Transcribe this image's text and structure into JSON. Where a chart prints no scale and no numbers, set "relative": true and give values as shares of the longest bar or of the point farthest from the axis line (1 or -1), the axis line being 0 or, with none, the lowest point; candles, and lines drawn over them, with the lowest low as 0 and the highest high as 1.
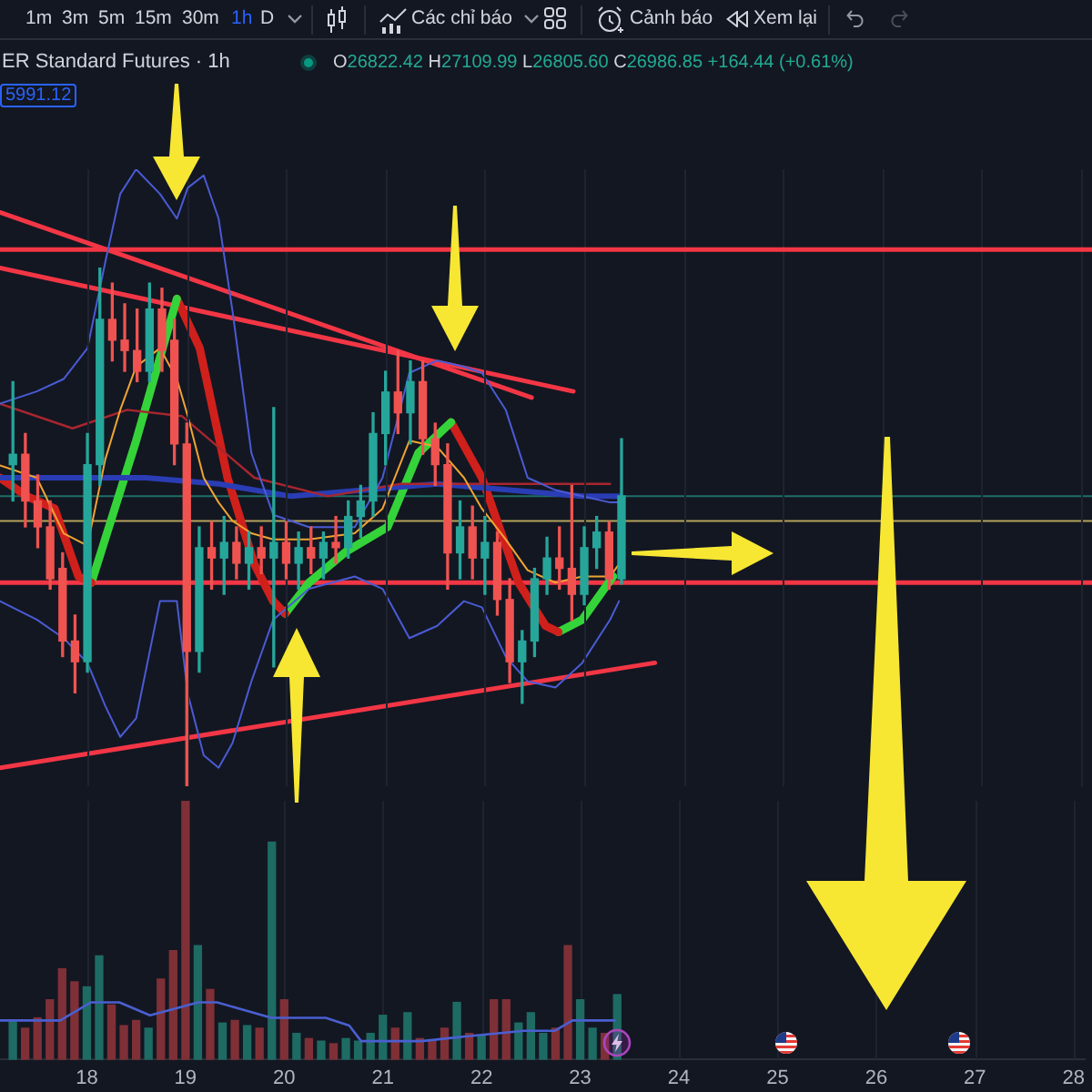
{
  "chart_data": [
    {
      "type": "candlestick",
      "title": "ER Standard Futures · 1h",
      "subtitle": "O26822.42 H27109.99 L26805.60 C26986.85 +164.44 (+0.61%)",
      "annotations": [
        "1m",
        "3m",
        "5m",
        "15m",
        "30m",
        "1h",
        "D",
        "Các chỉ báo",
        "Cảnh báo",
        "Xem lại",
        "5991.12"
      ],
      "relative": true,
      "x": [
        17.25,
        17.375,
        17.5,
        17.625,
        17.75,
        17.875,
        18,
        18.125,
        18.25,
        18.375,
        18.5,
        18.625,
        18.75,
        18.875,
        19,
        19.125,
        19.25,
        19.375,
        19.5,
        19.625,
        19.75,
        19.875,
        20,
        20.125,
        20.25,
        20.375,
        20.5,
        20.625,
        20.75,
        20.875,
        21,
        21.125,
        21.25,
        21.375,
        21.5,
        21.625,
        21.75,
        21.875,
        22,
        22.125,
        22.25,
        22.375,
        22.5,
        22.625,
        22.75,
        22.875,
        23,
        23.125,
        23.25,
        23.375
      ],
      "ohlc": [
        [
          0.62,
          0.78,
          0.55,
          0.64
        ],
        [
          0.64,
          0.68,
          0.5,
          0.55
        ],
        [
          0.55,
          0.6,
          0.46,
          0.5
        ],
        [
          0.5,
          0.55,
          0.38,
          0.4
        ],
        [
          0.42,
          0.45,
          0.25,
          0.28
        ],
        [
          0.28,
          0.33,
          0.18,
          0.24
        ],
        [
          0.24,
          0.68,
          0.22,
          0.62
        ],
        [
          0.62,
          1,
          0.58,
          0.9
        ],
        [
          0.9,
          0.97,
          0.82,
          0.86
        ],
        [
          0.86,
          0.93,
          0.8,
          0.84
        ],
        [
          0.84,
          0.92,
          0.78,
          0.8
        ],
        [
          0.8,
          0.97,
          0.78,
          0.92
        ],
        [
          0.92,
          0.96,
          0.8,
          0.84
        ],
        [
          0.86,
          0.9,
          0.62,
          0.66
        ],
        [
          0.66,
          0.7,
          0,
          0.26
        ],
        [
          0.26,
          0.5,
          0.22,
          0.46
        ],
        [
          0.46,
          0.51,
          0.38,
          0.44
        ],
        [
          0.44,
          0.52,
          0.37,
          0.47
        ],
        [
          0.47,
          0.5,
          0.4,
          0.43
        ],
        [
          0.43,
          0.49,
          0.38,
          0.46
        ],
        [
          0.46,
          0.5,
          0.41,
          0.44
        ],
        [
          0.44,
          0.73,
          0.23,
          0.47
        ],
        [
          0.47,
          0.51,
          0.4,
          0.43
        ],
        [
          0.43,
          0.49,
          0.38,
          0.46
        ],
        [
          0.46,
          0.5,
          0.41,
          0.44
        ],
        [
          0.44,
          0.49,
          0.4,
          0.47
        ],
        [
          0.47,
          0.52,
          0.43,
          0.46
        ],
        [
          0.46,
          0.55,
          0.44,
          0.52
        ],
        [
          0.52,
          0.58,
          0.48,
          0.55
        ],
        [
          0.55,
          0.72,
          0.52,
          0.68
        ],
        [
          0.68,
          0.8,
          0.62,
          0.76
        ],
        [
          0.76,
          0.84,
          0.68,
          0.72
        ],
        [
          0.72,
          0.82,
          0.66,
          0.78
        ],
        [
          0.78,
          0.82,
          0.64,
          0.67
        ],
        [
          0.67,
          0.7,
          0.58,
          0.62
        ],
        [
          0.62,
          0.66,
          0.38,
          0.45
        ],
        [
          0.45,
          0.55,
          0.4,
          0.5
        ],
        [
          0.5,
          0.54,
          0.4,
          0.44
        ],
        [
          0.44,
          0.52,
          0.37,
          0.47
        ],
        [
          0.47,
          0.49,
          0.33,
          0.36
        ],
        [
          0.36,
          0.4,
          0.2,
          0.24
        ],
        [
          0.24,
          0.3,
          0.16,
          0.28
        ],
        [
          0.28,
          0.42,
          0.25,
          0.4
        ],
        [
          0.4,
          0.48,
          0.37,
          0.44
        ],
        [
          0.44,
          0.5,
          0.38,
          0.42
        ],
        [
          0.42,
          0.58,
          0.32,
          0.37
        ],
        [
          0.37,
          0.5,
          0.35,
          0.46
        ],
        [
          0.46,
          0.52,
          0.42,
          0.49
        ],
        [
          0.49,
          0.51,
          0.38,
          0.4
        ],
        [
          0.4,
          0.67,
          0.39,
          0.56
        ]
      ],
      "colors": [
        "#26a69a",
        "#ef5350",
        "#ef5350",
        "#ef5350",
        "#ef5350",
        "#ef5350",
        "#26a69a",
        "#26a69a",
        "#ef5350",
        "#ef5350",
        "#ef5350",
        "#26a69a",
        "#ef5350",
        "#ef5350",
        "#ef5350",
        "#26a69a",
        "#ef5350",
        "#26a69a",
        "#ef5350",
        "#26a69a",
        "#ef5350",
        "#26a69a",
        "#ef5350",
        "#26a69a",
        "#ef5350",
        "#26a69a",
        "#ef5350",
        "#26a69a",
        "#26a69a",
        "#26a69a",
        "#26a69a",
        "#ef5350",
        "#26a69a",
        "#ef5350",
        "#ef5350",
        "#ef5350",
        "#26a69a",
        "#ef5350",
        "#26a69a",
        "#ef5350",
        "#ef5350",
        "#26a69a",
        "#26a69a",
        "#26a69a",
        "#ef5350",
        "#ef5350",
        "#26a69a",
        "#26a69a",
        "#ef5350",
        "#26a69a"
      ],
      "xlim": [
        17.12,
        28.11
      ],
      "xticks": [
        18,
        19,
        20,
        21,
        22,
        23,
        24,
        25,
        26,
        27,
        28
      ],
      "tick_labels": false,
      "grid": "x"
    },
    {
      "type": "line",
      "relative": true,
      "series": [
        {
          "type": "line",
          "color": "#4a5bd4",
          "x": [
            17.12,
            17.49,
            17.76,
            18.0,
            18.18,
            18.33,
            18.49,
            18.73,
            18.9,
            19.01,
            19.17,
            19.32,
            19.46,
            19.65,
            19.87,
            20.23,
            20.69,
            20.97,
            21.24,
            21.52,
            21.79,
            21.97,
            22.21,
            22.43,
            22.71,
            22.98,
            23.26,
            23.35
          ],
          "values": [
            0.62,
            0.64,
            0.66,
            0.71,
            0.85,
            0.96,
            1.0,
            0.96,
            0.92,
            0.97,
            0.99,
            0.92,
            0.77,
            0.54,
            0.44,
            0.42,
            0.42,
            0.5,
            0.67,
            0.69,
            0.68,
            0.67,
            0.61,
            0.5,
            0.48,
            0.47,
            0.46,
            0.46
          ]
        },
        {
          "type": "line",
          "color": "#4a5bd4",
          "x": [
            17.12,
            17.49,
            17.76,
            18.0,
            18.18,
            18.33,
            18.49,
            18.73,
            18.9,
            19.01,
            19.17,
            19.32,
            19.46,
            19.65,
            19.87,
            20.23,
            20.69,
            20.97,
            21.24,
            21.52,
            21.79,
            21.97,
            22.21,
            22.43,
            22.71,
            22.98,
            23.26,
            23.35
          ],
          "values": [
            0.3,
            0.27,
            0.24,
            0.2,
            0.13,
            0.08,
            0.11,
            0.3,
            0.3,
            0.15,
            0.05,
            0.03,
            0.07,
            0.17,
            0.27,
            0.32,
            0.34,
            0.32,
            0.24,
            0.26,
            0.3,
            0.29,
            0.21,
            0.17,
            0.16,
            0.2,
            0.27,
            0.3
          ]
        },
        {
          "type": "line",
          "color": "#f0a432",
          "x": [
            17.12,
            17.49,
            17.76,
            18.0,
            18.18,
            18.33,
            18.49,
            18.73,
            18.9,
            19.01,
            19.17,
            19.32,
            19.46,
            19.65,
            19.87,
            20.23,
            20.69,
            20.97,
            21.24,
            21.52,
            21.79,
            21.97,
            22.21,
            22.43,
            22.71,
            22.98,
            23.26,
            23.35
          ],
          "values": [
            0.52,
            0.5,
            0.41,
            0.39,
            0.53,
            0.61,
            0.68,
            0.71,
            0.66,
            0.6,
            0.5,
            0.46,
            0.43,
            0.41,
            0.4,
            0.4,
            0.41,
            0.45,
            0.56,
            0.55,
            0.5,
            0.45,
            0.4,
            0.35,
            0.33,
            0.34,
            0.34,
            0.36
          ]
        },
        {
          "type": "line",
          "color": "#a8262f",
          "x": [
            17.12,
            17.85,
            18.4,
            18.95,
            19.68,
            20.42,
            21.15,
            22.07,
            23.26
          ],
          "values": [
            0.62,
            0.58,
            0.61,
            0.6,
            0.5,
            0.47,
            0.49,
            0.49,
            0.49
          ]
        },
        {
          "type": "line",
          "color": "#2a3db5",
          "x": [
            17.12,
            17.67,
            18.59,
            19.32,
            20.05,
            20.78,
            21.52,
            22.25,
            22.98,
            23.35
          ],
          "values": [
            0.5,
            0.5,
            0.5,
            0.49,
            0.47,
            0.48,
            0.49,
            0.48,
            0.47,
            0.47
          ]
        },
        {
          "type": "line",
          "color": "#d0201c",
          "x": [
            17.12,
            17.39,
            17.67,
            17.91,
            18.04
          ],
          "values": [
            0.5,
            0.47,
            0.45,
            0.34,
            0.33
          ]
        },
        {
          "type": "line",
          "color": "#35d33a",
          "x": [
            18.04,
            18.49,
            18.9
          ],
          "values": [
            0.33,
            0.56,
            0.79
          ]
        },
        {
          "type": "line",
          "color": "#d0201c",
          "x": [
            18.9,
            19.13,
            19.41,
            19.68,
            19.87,
            19.99
          ],
          "values": [
            0.79,
            0.71,
            0.5,
            0.36,
            0.3,
            0.28
          ]
        },
        {
          "type": "line",
          "color": "#35d33a",
          "x": [
            19.99,
            20.23,
            20.6,
            21.02,
            21.33,
            21.66
          ],
          "values": [
            0.28,
            0.33,
            0.38,
            0.42,
            0.54,
            0.59
          ]
        },
        {
          "type": "line",
          "color": "#d0201c",
          "x": [
            21.66,
            21.97,
            22.34,
            22.61,
            22.74
          ],
          "values": [
            0.59,
            0.5,
            0.33,
            0.26,
            0.25
          ]
        },
        {
          "type": "line",
          "color": "#35d33a",
          "x": [
            22.74,
            22.98,
            23.29
          ],
          "values": [
            0.25,
            0.27,
            0.34
          ]
        },
        {
          "type": "line",
          "color": "#f23645",
          "x": [
            17.12,
            22.47
          ],
          "values": [
            0.93,
            0.63
          ]
        },
        {
          "type": "line",
          "color": "#f23645",
          "x": [
            17.12,
            22.89
          ],
          "values": [
            0.84,
            0.64
          ]
        },
        {
          "type": "line",
          "color": "#f23645",
          "x": [
            17.12,
            23.71
          ],
          "values": [
            0.03,
            0.2
          ]
        }
      ],
      "xlim": [
        17.12,
        28.11
      ],
      "xticks": [
        18,
        19,
        20,
        21,
        22,
        23,
        24,
        25,
        26,
        27,
        28
      ],
      "tick_labels": false,
      "grid": "x",
      "ref_lines": [
        {
          "axis": "y",
          "value": 0.87,
          "color": "#f23645"
        },
        {
          "axis": "y",
          "value": 0.33,
          "color": "#f23645"
        },
        {
          "axis": "y",
          "value": 0.43,
          "color": "#b3a25a"
        },
        {
          "axis": "y",
          "value": 0.47,
          "color": "#1f6f68"
        }
      ]
    },
    {
      "type": "bar",
      "relative": true,
      "x": [
        17.25,
        17.375,
        17.5,
        17.625,
        17.75,
        17.875,
        18,
        18.125,
        18.25,
        18.375,
        18.5,
        18.625,
        18.75,
        18.875,
        19,
        19.125,
        19.25,
        19.375,
        19.5,
        19.625,
        19.75,
        19.875,
        20,
        20.125,
        20.25,
        20.375,
        20.5,
        20.625,
        20.75,
        20.875,
        21,
        21.125,
        21.25,
        21.375,
        21.5,
        21.625,
        21.75,
        21.875,
        22,
        22.125,
        22.25,
        22.375,
        22.5,
        22.625,
        22.75,
        22.875,
        23,
        23.125,
        23.25,
        23.375
      ],
      "series": [
        {
          "type": "bar",
          "values": [
            0.15,
            0.12,
            0.16,
            0.23,
            0.35,
            0.3,
            0.28,
            0.4,
            0.21,
            0.13,
            0.15,
            0.12,
            0.31,
            0.42,
            1,
            0.44,
            0.27,
            0.14,
            0.15,
            0.13,
            0.12,
            0.84,
            0.23,
            0.1,
            0.08,
            0.07,
            0.06,
            0.08,
            0.07,
            0.1,
            0.17,
            0.12,
            0.18,
            0.08,
            0.07,
            0.12,
            0.22,
            0.1,
            0.09,
            0.23,
            0.23,
            0.14,
            0.18,
            0.1,
            0.12,
            0.44,
            0.23,
            0.12,
            0.1,
            0.25
          ],
          "colors": [
            "#1e6b63",
            "#7e3036",
            "#7e3036",
            "#7e3036",
            "#7e3036",
            "#7e3036",
            "#1e6b63",
            "#1e6b63",
            "#7e3036",
            "#7e3036",
            "#7e3036",
            "#1e6b63",
            "#7e3036",
            "#7e3036",
            "#7e3036",
            "#1e6b63",
            "#7e3036",
            "#1e6b63",
            "#7e3036",
            "#1e6b63",
            "#7e3036",
            "#1e6b63",
            "#7e3036",
            "#1e6b63",
            "#7e3036",
            "#1e6b63",
            "#7e3036",
            "#1e6b63",
            "#1e6b63",
            "#1e6b63",
            "#1e6b63",
            "#7e3036",
            "#1e6b63",
            "#7e3036",
            "#7e3036",
            "#7e3036",
            "#1e6b63",
            "#7e3036",
            "#1e6b63",
            "#7e3036",
            "#7e3036",
            "#1e6b63",
            "#1e6b63",
            "#1e6b63",
            "#7e3036",
            "#7e3036",
            "#1e6b63",
            "#1e6b63",
            "#7e3036",
            "#1e6b63"
          ]
        },
        {
          "type": "line",
          "color": "#4a5fd0",
          "x": [
            17.12,
            17.73,
            18.04,
            18.33,
            18.64,
            19.13,
            19.32,
            19.87,
            20.42,
            20.66,
            20.78,
            21.39,
            21.88,
            22.43,
            22.74,
            22.92,
            23.35
          ],
          "values": [
            0.15,
            0.15,
            0.22,
            0.22,
            0.17,
            0.22,
            0.22,
            0.16,
            0.16,
            0.13,
            0.07,
            0.07,
            0.09,
            0.11,
            0.11,
            0.15,
            0.15
          ]
        }
      ],
      "xlim": [
        17.12,
        28.11
      ],
      "xticks": [
        18,
        19,
        20,
        21,
        22,
        23,
        24,
        25,
        26,
        27,
        28
      ],
      "tick_labels": "x",
      "grid": "x"
    }
  ]
}
